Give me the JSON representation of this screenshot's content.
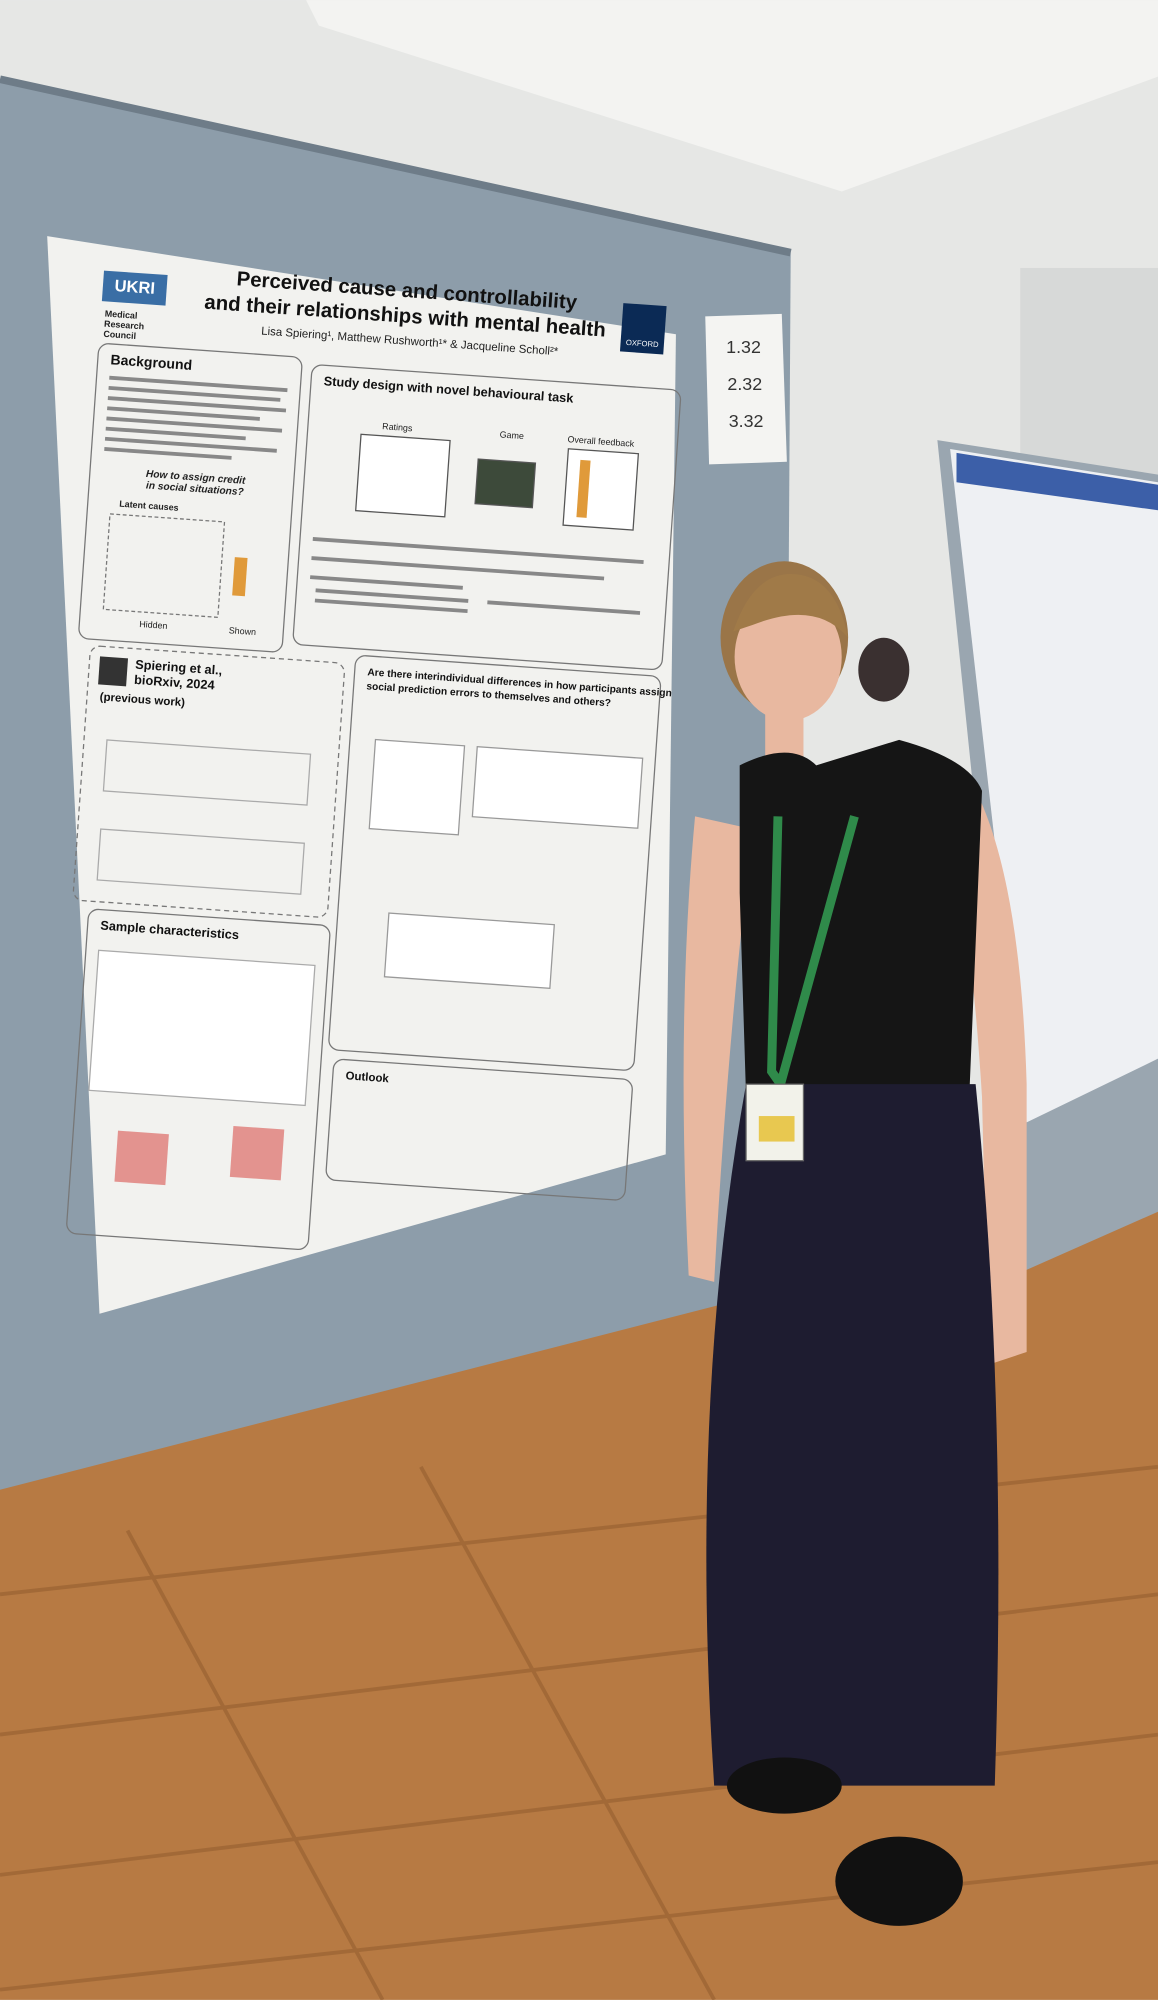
{
  "poster": {
    "logo_left": "UKRI",
    "logo_left_sub": [
      "Medical",
      "Research",
      "Council"
    ],
    "logo_right": "OXFORD",
    "title_lines": [
      "Perceived cause and controllability",
      "and their relationships with mental health"
    ],
    "authors": "Lisa Spiering¹, Matthew Rushworth¹* & Jacqueline Scholl²*",
    "sections": {
      "background": "Background",
      "credit_question": [
        "How to assign credit",
        "in social situations?"
      ],
      "latent_causes": "Latent causes",
      "hidden": "Hidden",
      "shown": "Shown",
      "study_design": "Study design with novel behavioural task",
      "ratings": "Ratings",
      "game": "Game",
      "overall_feedback": "Overall feedback",
      "previous_work": [
        "Spiering et al.,",
        "bioRxiv, 2024",
        "(previous work)"
      ],
      "question": [
        "Are there interindividual differences in how participants assign",
        "social prediction errors to themselves and others?"
      ],
      "sample": "Sample characteristics",
      "outlook": "Outlook"
    }
  },
  "board_note": {
    "lines": [
      "1.32",
      "2.32",
      "3.32"
    ]
  }
}
